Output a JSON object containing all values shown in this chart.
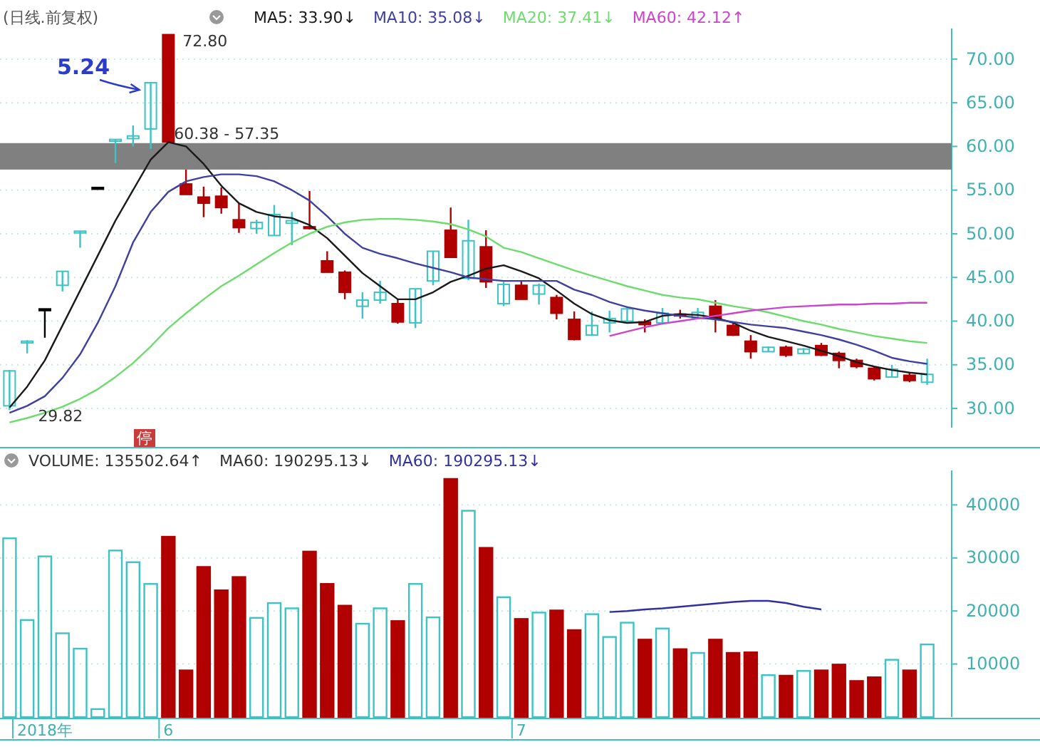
{
  "chart_data": [
    {
      "type": "candlestick",
      "title": "(日线.前复权)",
      "categories": [
        null,
        null,
        null,
        null,
        null,
        null,
        null,
        null,
        null,
        null,
        null,
        null,
        null,
        null,
        null,
        null,
        null,
        null,
        null,
        null,
        null,
        null,
        null,
        null,
        null,
        null,
        null,
        null,
        null,
        null,
        null,
        null,
        null,
        null,
        null,
        null,
        null,
        null,
        null,
        null,
        null,
        null,
        null,
        null,
        null,
        null,
        null,
        null,
        null,
        null,
        null,
        null,
        null
      ],
      "ohlc": [
        [
          30.3,
          34.4,
          29.82,
          34.3
        ],
        [
          37.5,
          37.8,
          36.3,
          37.7
        ],
        [
          41.4,
          41.4,
          38.1,
          41.4
        ],
        [
          44.1,
          45.7,
          43.4,
          45.7
        ],
        [
          50.1,
          50.3,
          48.4,
          50.3
        ],
        [
          55.3,
          55.3,
          55.3,
          55.3
        ],
        [
          60.6,
          60.8,
          58.1,
          60.8
        ],
        [
          60.9,
          62.4,
          60.0,
          61.2
        ],
        [
          62.0,
          67.3,
          59.7,
          67.3
        ],
        [
          72.8,
          72.8,
          60.38,
          60.5
        ],
        [
          55.7,
          57.35,
          54.5,
          54.5
        ],
        [
          54.2,
          55.4,
          51.9,
          53.5
        ],
        [
          54.3,
          55.3,
          52.3,
          53.0
        ],
        [
          51.6,
          53.5,
          50.1,
          50.7
        ],
        [
          50.6,
          51.6,
          50.0,
          51.3
        ],
        [
          49.8,
          53.3,
          49.8,
          52.2
        ],
        [
          51.2,
          52.5,
          48.7,
          51.5
        ],
        [
          50.8,
          54.9,
          50.5,
          50.6
        ],
        [
          46.9,
          48.0,
          45.6,
          45.6
        ],
        [
          45.6,
          45.8,
          42.5,
          43.3
        ],
        [
          41.7,
          43.3,
          40.3,
          42.4
        ],
        [
          42.4,
          44.6,
          42.0,
          43.3
        ],
        [
          42.0,
          42.5,
          39.7,
          39.9
        ],
        [
          39.8,
          43.7,
          39.2,
          43.7
        ],
        [
          44.6,
          48.0,
          44.1,
          48.0
        ],
        [
          50.4,
          53.0,
          47.3,
          47.3
        ],
        [
          44.9,
          51.6,
          44.7,
          49.2
        ],
        [
          48.5,
          50.4,
          43.8,
          44.5
        ],
        [
          42.0,
          44.5,
          41.7,
          44.2
        ],
        [
          44.1,
          44.6,
          42.5,
          42.5
        ],
        [
          43.1,
          44.3,
          41.9,
          44.1
        ],
        [
          42.7,
          43.0,
          40.2,
          40.9
        ],
        [
          40.2,
          41.1,
          37.8,
          37.9
        ],
        [
          38.4,
          41.1,
          38.3,
          39.5
        ],
        [
          39.8,
          41.2,
          38.7,
          40.3
        ],
        [
          40.0,
          41.7,
          40.0,
          41.4
        ],
        [
          39.9,
          40.2,
          38.7,
          39.6
        ],
        [
          39.8,
          41.5,
          39.8,
          40.9
        ],
        [
          40.8,
          41.3,
          40.3,
          40.6
        ],
        [
          40.3,
          41.5,
          40.2,
          41.0
        ],
        [
          41.7,
          42.4,
          38.7,
          40.3
        ],
        [
          39.5,
          39.7,
          38.3,
          38.4
        ],
        [
          37.7,
          38.4,
          35.7,
          36.5
        ],
        [
          36.5,
          37.1,
          36.5,
          37.0
        ],
        [
          37.0,
          37.2,
          35.9,
          36.1
        ],
        [
          36.3,
          36.9,
          36.2,
          36.8
        ],
        [
          37.2,
          37.5,
          36.0,
          36.1
        ],
        [
          36.3,
          36.5,
          34.6,
          35.5
        ],
        [
          35.5,
          35.7,
          34.6,
          34.8
        ],
        [
          34.6,
          34.8,
          33.2,
          33.4
        ],
        [
          33.6,
          35.0,
          33.6,
          34.5
        ],
        [
          33.8,
          34.1,
          33.0,
          33.2
        ],
        [
          33.0,
          35.7,
          32.7,
          33.9
        ]
      ],
      "colors": [
        "#3cc4c4",
        "#3cc4c4",
        "#000000",
        "#3cc4c4",
        "#3cc4c4",
        "#000000",
        "#3cc4c4",
        "#3cc4c4",
        "#3cc4c4",
        "#b00000",
        "#b00000",
        "#b00000",
        "#b00000",
        "#b00000",
        "#3cc4c4",
        "#3cc4c4",
        "#3cc4c4",
        "#b00000",
        "#b00000",
        "#b00000",
        "#3cc4c4",
        "#3cc4c4",
        "#b00000",
        "#3cc4c4",
        "#3cc4c4",
        "#b00000",
        "#3cc4c4",
        "#b00000",
        "#3cc4c4",
        "#b00000",
        "#3cc4c4",
        "#b00000",
        "#b00000",
        "#3cc4c4",
        "#3cc4c4",
        "#3cc4c4",
        "#b00000",
        "#3cc4c4",
        "#b00000",
        "#3cc4c4",
        "#b00000",
        "#b00000",
        "#b00000",
        "#3cc4c4",
        "#b00000",
        "#3cc4c4",
        "#b00000",
        "#b00000",
        "#b00000",
        "#b00000",
        "#3cc4c4",
        "#b00000",
        "#3cc4c4"
      ],
      "series": [
        {
          "type": "line",
          "name": "MA5: 33.90↓",
          "color": "#1a1a1a",
          "values": [
            30.1,
            32.5,
            35.5,
            39.5,
            43.5,
            47.5,
            51.5,
            55.0,
            58.5,
            60.5,
            60.0,
            58.0,
            55.5,
            53.5,
            52.5,
            52.0,
            51.8,
            51.0,
            49.5,
            47.5,
            45.5,
            44.0,
            42.5,
            42.5,
            43.3,
            44.5,
            45.2,
            46.0,
            46.4,
            45.7,
            44.9,
            43.5,
            42.0,
            40.8,
            40.1,
            39.8,
            39.9,
            40.6,
            40.8,
            40.7,
            40.4,
            39.8,
            38.9,
            38.2,
            37.7,
            37.2,
            36.6,
            36.0,
            35.3,
            34.8,
            34.4,
            34.1,
            33.9
          ]
        },
        {
          "type": "line",
          "name": "MA10: 35.08↓",
          "color": "#4040a0",
          "values": [
            29.5,
            30.3,
            31.4,
            33.5,
            36.2,
            39.8,
            44.0,
            49.0,
            52.5,
            54.8,
            56.0,
            56.5,
            56.8,
            56.8,
            56.6,
            56.0,
            55.0,
            53.8,
            52.0,
            50.0,
            48.4,
            47.7,
            47.2,
            46.6,
            46.1,
            45.6,
            45.0,
            44.8,
            44.6,
            44.6,
            44.6,
            44.6,
            43.6,
            43.0,
            42.2,
            41.6,
            41.2,
            40.9,
            40.6,
            40.4,
            40.2,
            39.9,
            39.6,
            39.4,
            39.2,
            38.8,
            38.4,
            37.9,
            37.3,
            36.6,
            35.8,
            35.4,
            35.1
          ]
        },
        {
          "type": "line",
          "name": "MA20: 37.41↓",
          "color": "#6cdc6c",
          "values": [
            28.4,
            28.9,
            29.5,
            30.2,
            31.1,
            32.2,
            33.6,
            35.2,
            37.1,
            39.2,
            40.9,
            42.5,
            44.0,
            45.2,
            46.5,
            47.8,
            49.0,
            50.0,
            50.8,
            51.3,
            51.6,
            51.7,
            51.7,
            51.6,
            51.4,
            51.1,
            50.5,
            49.7,
            48.4,
            47.9,
            47.2,
            46.5,
            45.8,
            45.2,
            44.6,
            44.0,
            43.5,
            43.0,
            42.7,
            42.5,
            42.1,
            41.7,
            41.4,
            41.0,
            40.5,
            40.0,
            39.6,
            39.1,
            38.7,
            38.3,
            38.0,
            37.7,
            37.5
          ]
        },
        {
          "type": "line",
          "name": "MA60: 42.12↑",
          "color": "#cc44cc",
          "values": [
            null,
            null,
            null,
            null,
            null,
            null,
            null,
            null,
            null,
            null,
            null,
            null,
            null,
            null,
            null,
            null,
            null,
            null,
            null,
            null,
            null,
            null,
            null,
            null,
            null,
            null,
            null,
            null,
            null,
            null,
            null,
            null,
            null,
            null,
            38.3,
            38.8,
            39.3,
            39.7,
            40.0,
            40.3,
            40.6,
            40.9,
            41.2,
            41.4,
            41.6,
            41.7,
            41.8,
            41.9,
            41.9,
            42.0,
            42.0,
            42.1,
            42.1
          ]
        }
      ],
      "bands": [
        {
          "axis": "y",
          "from": 57.35,
          "to": 60.38,
          "label": "60.38 - 57.35",
          "color": "#808080"
        }
      ],
      "annotations": [
        "5.24",
        "72.80",
        "29.82",
        "停"
      ],
      "ylim": [
        27.8,
        73.5
      ],
      "yticks": [
        {
          "value": 30,
          "label": "30.00"
        },
        {
          "value": 35,
          "label": "35.00"
        },
        {
          "value": 40,
          "label": "40.00"
        },
        {
          "value": 45,
          "label": "45.00"
        },
        {
          "value": 50,
          "label": "50.00"
        },
        {
          "value": 55,
          "label": "55.00"
        },
        {
          "value": 60,
          "label": "60.00"
        },
        {
          "value": 65,
          "label": "65.00"
        },
        {
          "value": 70,
          "label": "70.00"
        }
      ],
      "grid": "y",
      "legend": "top",
      "tick_labels": "y"
    },
    {
      "type": "bar",
      "categories": [
        null,
        null,
        "2018年",
        null,
        null,
        null,
        null,
        null,
        null,
        "6",
        null,
        null,
        null,
        null,
        null,
        null,
        null,
        null,
        null,
        null,
        null,
        null,
        null,
        null,
        null,
        null,
        null,
        null,
        null,
        "7",
        null,
        null,
        null,
        null,
        null,
        null,
        null,
        null,
        null,
        null,
        null,
        null,
        null,
        null,
        null,
        null,
        null,
        null,
        null,
        null,
        null,
        null,
        null
      ],
      "series": [
        {
          "type": "bar",
          "colors": [
            "#3cc4c4",
            "#3cc4c4",
            "#3cc4c4",
            "#3cc4c4",
            "#3cc4c4",
            "#3cc4c4",
            "#3cc4c4",
            "#3cc4c4",
            "#3cc4c4",
            "#b00000",
            "#b00000",
            "#b00000",
            "#b00000",
            "#b00000",
            "#3cc4c4",
            "#3cc4c4",
            "#3cc4c4",
            "#b00000",
            "#b00000",
            "#b00000",
            "#3cc4c4",
            "#3cc4c4",
            "#b00000",
            "#3cc4c4",
            "#3cc4c4",
            "#b00000",
            "#3cc4c4",
            "#b00000",
            "#3cc4c4",
            "#b00000",
            "#3cc4c4",
            "#b00000",
            "#b00000",
            "#3cc4c4",
            "#3cc4c4",
            "#3cc4c4",
            "#b00000",
            "#3cc4c4",
            "#b00000",
            "#3cc4c4",
            "#b00000",
            "#b00000",
            "#b00000",
            "#3cc4c4",
            "#b00000",
            "#3cc4c4",
            "#b00000",
            "#b00000",
            "#b00000",
            "#b00000",
            "#3cc4c4",
            "#b00000",
            "#3cc4c4"
          ],
          "values": [
            33700,
            18300,
            30300,
            15800,
            12900,
            1500,
            31400,
            29200,
            25100,
            34000,
            8800,
            28300,
            23900,
            26400,
            18700,
            21500,
            20500,
            31200,
            25100,
            21000,
            17600,
            20500,
            18100,
            25100,
            18800,
            44900,
            38900,
            31900,
            22600,
            18500,
            19700,
            20100,
            16400,
            19400,
            15100,
            17800,
            14600,
            16700,
            12800,
            12100,
            14600,
            12100,
            12200,
            7900,
            7800,
            8700,
            8800,
            9900,
            6800,
            7500,
            10800,
            8800,
            13700
          ]
        },
        {
          "type": "line",
          "name": "MA60: 190295.13↓",
          "color": "#3030a0",
          "values": [
            null,
            null,
            null,
            null,
            null,
            null,
            null,
            null,
            null,
            null,
            null,
            null,
            null,
            null,
            null,
            null,
            null,
            null,
            null,
            null,
            null,
            null,
            null,
            null,
            null,
            null,
            null,
            null,
            null,
            null,
            null,
            null,
            null,
            null,
            19800,
            20000,
            20300,
            20500,
            20800,
            21100,
            21400,
            21700,
            21900,
            21900,
            21500,
            20800,
            20300,
            null,
            null,
            null,
            null,
            null,
            null
          ]
        }
      ],
      "annotations": [
        "VOLUME: 135502.64↑",
        "MA60: 190295.13↓"
      ],
      "ylim": [
        0,
        46500
      ],
      "yticks": [
        10000,
        20000,
        30000,
        40000
      ],
      "grid": "y",
      "legend": "top"
    }
  ]
}
